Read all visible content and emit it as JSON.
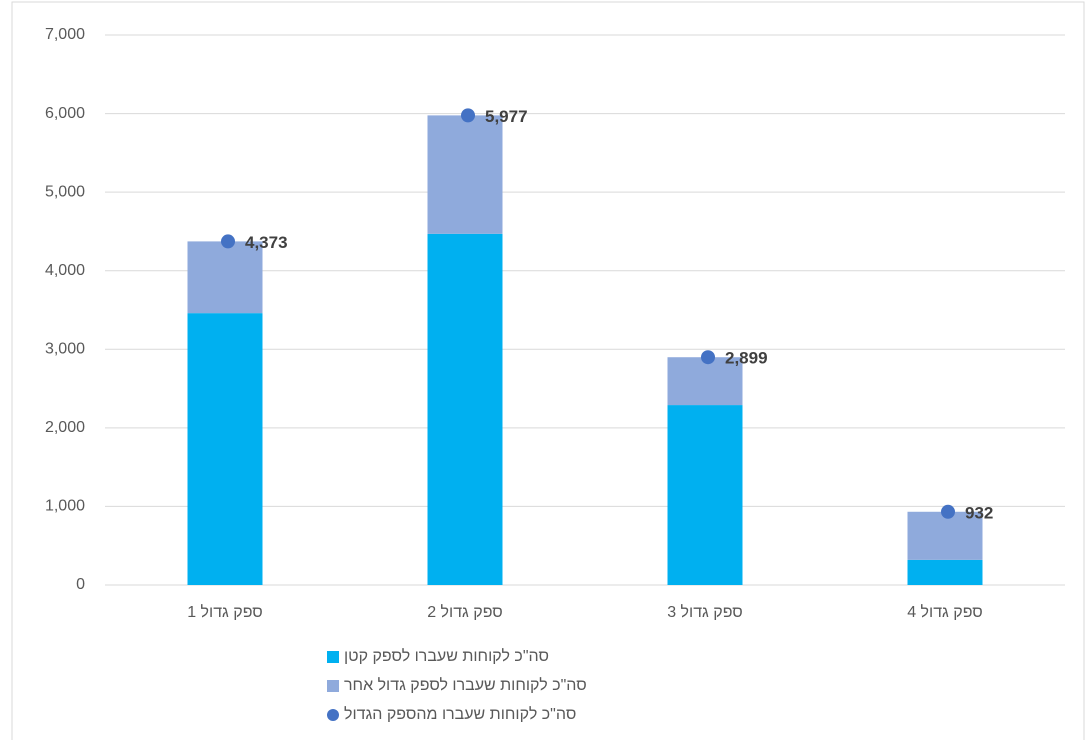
{
  "chart_data": {
    "type": "bar",
    "categories": [
      "ספק גדול 1",
      "ספק גדול 2",
      "ספק גדול 3",
      "ספק גדול 4"
    ],
    "series": [
      {
        "name": "סה\"כ לקוחות שעברו לספק קטן",
        "color": "#00b0f0",
        "values": [
          3460,
          4470,
          2290,
          320
        ]
      },
      {
        "name": "סה\"כ לקוחות שעברו לספק גדול אחר",
        "color": "#8faadc",
        "values": [
          913,
          1507,
          609,
          612
        ]
      },
      {
        "name": "סה\"כ לקוחות שעברו מהספק הגדול",
        "color": "#4472c4",
        "type": "scatter",
        "values": [
          4373,
          5977,
          2899,
          932
        ],
        "value_labels": [
          "4,373",
          "5,977",
          "2,899",
          "932"
        ]
      }
    ],
    "stacked": true,
    "ylim": [
      0,
      7000
    ],
    "yticks": [
      0,
      {
        "value": 1000,
        "label": "1,000"
      },
      {
        "value": 2000,
        "label": "2,000"
      },
      {
        "value": 3000,
        "label": "3,000"
      },
      {
        "value": 4000,
        "label": "4,000"
      },
      {
        "value": 5000,
        "label": "5,000"
      },
      {
        "value": 6000,
        "label": "6,000"
      },
      {
        "value": 7000,
        "label": "7,000"
      }
    ],
    "grid": true,
    "legend": "bottom"
  }
}
